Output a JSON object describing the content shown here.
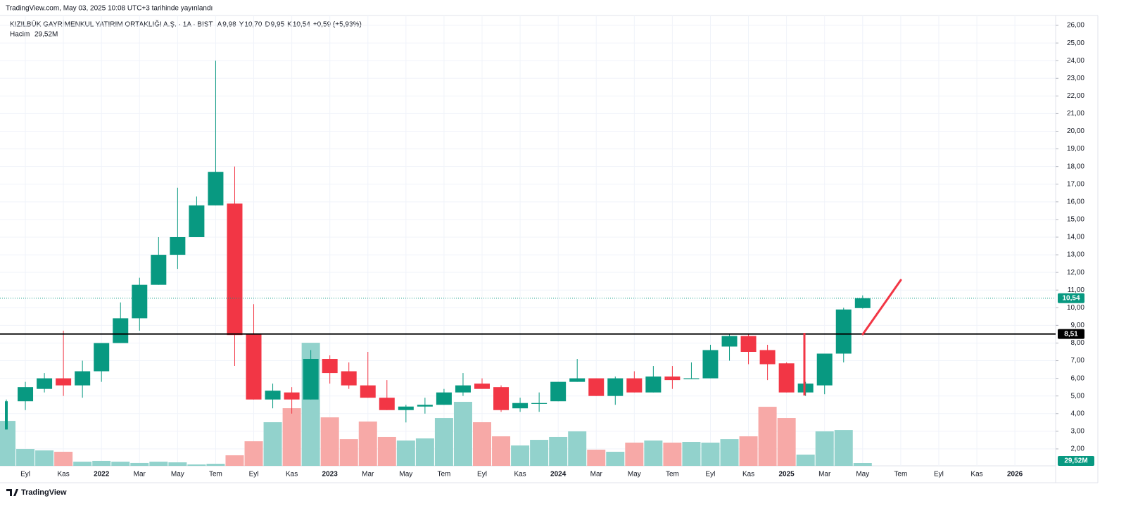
{
  "chart_data": {
    "type": "candlestick",
    "header": "TradingView.com, May 03, 2025 10:08 UTC+3 tarihinde yayınlandı",
    "title": "KIZILBÜK GAYRİMENKUL YATIRIM ORTAKLIĞI A.Ş. · 1A · BIST",
    "legend": {
      "open_key": "A",
      "open": "9,98",
      "high_key": "Y",
      "high": "10,70",
      "low_key": "D",
      "low": "9,95",
      "close_key": "K",
      "close": "10,54",
      "change": "+0,59 (+5,93%)"
    },
    "volume_name": "Hacim",
    "volume_value_label": "29,52M",
    "footer": "TradingView",
    "up_color": "#089981",
    "down_color": "#f23645",
    "volume_up_color": "#92d2cc",
    "volume_down_color": "#f7a9a7",
    "categories": [
      null,
      "Eyl",
      null,
      "Kas",
      null,
      "2022",
      null,
      "Mar",
      null,
      "May",
      null,
      "Tem",
      null,
      "Eyl",
      null,
      "Kas",
      null,
      "2023",
      null,
      "Mar",
      null,
      "May",
      null,
      "Tem",
      null,
      "Eyl",
      null,
      "Kas",
      null,
      "2024",
      null,
      "Mar",
      null,
      "May",
      null,
      "Tem",
      null,
      "Eyl",
      null,
      "Kas",
      null,
      "2025",
      null,
      "Mar",
      null,
      "May",
      null,
      "Tem",
      null,
      "Eyl",
      null,
      "Kas",
      null,
      "2026"
    ],
    "open": [
      3.1,
      4.7,
      5.4,
      6.0,
      5.6,
      6.4,
      8.0,
      9.4,
      11.3,
      13.0,
      14.0,
      15.8,
      15.9,
      8.5,
      4.8,
      5.2,
      4.8,
      7.1,
      6.4,
      5.6,
      4.9,
      4.2,
      4.4,
      4.5,
      5.2,
      5.7,
      5.5,
      4.3,
      4.55,
      4.7,
      5.8,
      6.0,
      5.0,
      6.0,
      5.2,
      6.1,
      5.95,
      6.0,
      7.8,
      8.4,
      7.6,
      6.85,
      5.2,
      5.6,
      7.4,
      9.98,
      null,
      null,
      null,
      null,
      null,
      null,
      null,
      null
    ],
    "high": [
      4.8,
      5.8,
      6.3,
      8.7,
      7.0,
      8.0,
      10.3,
      11.7,
      14.0,
      16.8,
      16.3,
      24.0,
      18.0,
      10.2,
      5.7,
      5.5,
      7.6,
      7.3,
      6.9,
      7.5,
      5.9,
      4.5,
      4.9,
      5.4,
      6.3,
      6.0,
      5.6,
      4.9,
      5.2,
      5.8,
      7.1,
      6.0,
      6.1,
      6.4,
      6.7,
      6.7,
      6.9,
      7.9,
      8.5,
      8.5,
      7.9,
      6.9,
      5.8,
      7.4,
      10.0,
      10.7,
      null,
      null,
      null,
      null,
      null,
      null,
      null,
      null
    ],
    "low": [
      3.1,
      4.2,
      5.2,
      5.0,
      4.9,
      5.8,
      8.0,
      8.7,
      11.3,
      12.2,
      14.0,
      15.8,
      6.7,
      4.8,
      4.3,
      4.0,
      4.8,
      5.7,
      5.4,
      4.9,
      4.2,
      3.5,
      4.0,
      4.5,
      5.0,
      5.4,
      4.1,
      4.1,
      4.1,
      4.7,
      5.8,
      5.0,
      4.5,
      5.2,
      5.2,
      5.4,
      6.0,
      6.0,
      7.0,
      6.8,
      5.9,
      5.2,
      5.0,
      5.1,
      6.9,
      9.95,
      null,
      null,
      null,
      null,
      null,
      null,
      null,
      null
    ],
    "close": [
      4.7,
      5.5,
      6.0,
      5.6,
      6.4,
      8.0,
      9.4,
      11.3,
      13.0,
      14.0,
      15.8,
      17.7,
      8.45,
      4.8,
      5.3,
      4.8,
      7.1,
      6.3,
      5.6,
      4.9,
      4.2,
      4.4,
      4.5,
      5.2,
      5.6,
      5.4,
      4.2,
      4.6,
      4.6,
      5.8,
      6.0,
      5.0,
      6.0,
      5.2,
      6.1,
      5.9,
      6.0,
      7.6,
      8.4,
      7.5,
      6.8,
      5.2,
      5.7,
      7.4,
      9.9,
      10.54,
      null,
      null,
      null,
      null,
      null,
      null,
      null,
      null
    ],
    "volume": [
      472,
      177,
      162,
      148,
      44,
      52,
      44,
      30,
      44,
      37,
      15,
      22,
      111,
      258,
      458,
      605,
      1292,
      509,
      280,
      465,
      303,
      266,
      288,
      502,
      672,
      458,
      310,
      214,
      273,
      303,
      362,
      170,
      148,
      244,
      266,
      244,
      251,
      244,
      280,
      310,
      620,
      502,
      118,
      362,
      376,
      29.52,
      null,
      null,
      null,
      null,
      null,
      null,
      null,
      null
    ],
    "vlim": [
      0,
      1300
    ],
    "ylim": [
      1.04,
      26.56
    ],
    "yticks": [
      {
        "value": 2,
        "label": "2,00"
      },
      {
        "value": 3,
        "label": "3,00"
      },
      {
        "value": 4,
        "label": "4,00"
      },
      {
        "value": 5,
        "label": "5,00"
      },
      {
        "value": 6,
        "label": "6,00"
      },
      {
        "value": 7,
        "label": "7,00"
      },
      {
        "value": 8,
        "label": "8,00"
      },
      {
        "value": 9,
        "label": "9,00"
      },
      {
        "value": 10,
        "label": "10,00"
      },
      {
        "value": 11,
        "label": "11,00"
      },
      {
        "value": 12,
        "label": "12,00"
      },
      {
        "value": 13,
        "label": "13,00"
      },
      {
        "value": 14,
        "label": "14,00"
      },
      {
        "value": 15,
        "label": "15,00"
      },
      {
        "value": 16,
        "label": "16,00"
      },
      {
        "value": 17,
        "label": "17,00"
      },
      {
        "value": 18,
        "label": "18,00"
      },
      {
        "value": 19,
        "label": "19,00"
      },
      {
        "value": 20,
        "label": "20,00"
      },
      {
        "value": 21,
        "label": "21,00"
      },
      {
        "value": 22,
        "label": "22,00"
      },
      {
        "value": 23,
        "label": "23,00"
      },
      {
        "value": 24,
        "label": "24,00"
      },
      {
        "value": 25,
        "label": "25,00"
      },
      {
        "value": 26,
        "label": "26,00"
      }
    ],
    "hline": {
      "value": 8.51,
      "label": "8,51",
      "color": "#000000"
    },
    "last_price": {
      "value": 10.54,
      "label": "10,54"
    },
    "grid": true
  }
}
